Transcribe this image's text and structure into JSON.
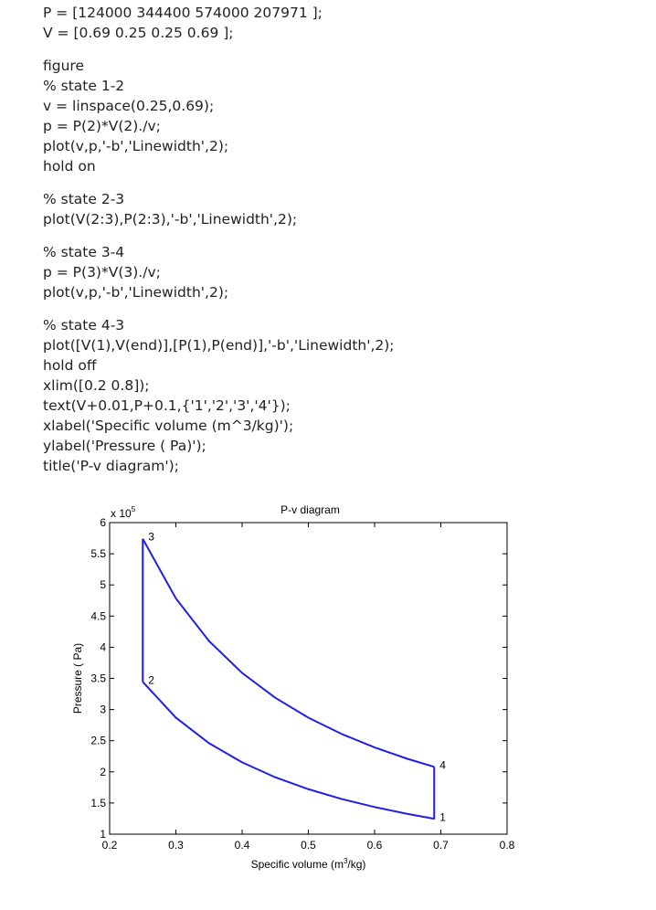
{
  "code": [
    [
      "P = [124000 344400 574000 207971 ];",
      "V = [0.69 0.25 0.25 0.69 ];"
    ],
    [
      "figure",
      "% state 1-2",
      "v = linspace(0.25,0.69);",
      "p = P(2)*V(2)./v;",
      "plot(v,p,'-b','Linewidth',2);",
      "hold on"
    ],
    [
      "% state 2-3",
      "plot(V(2:3),P(2:3),'-b','Linewidth',2);"
    ],
    [
      "% state 3-4",
      "p = P(3)*V(3)./v;",
      "plot(v,p,'-b','Linewidth',2);"
    ],
    [
      "% state 4-3",
      "plot([V(1),V(end)],[P(1),P(end)],'-b','Linewidth',2);",
      "hold off",
      "xlim([0.2 0.8]);",
      "text(V+0.01,P+0.1,{'1','2','3','4'});",
      "xlabel('Specific volume (m^3/kg)');",
      "ylabel('Pressure ( Pa)');",
      "title('P-v diagram');"
    ]
  ],
  "chart_data": {
    "type": "line",
    "title": "P-v diagram",
    "xlabel": {
      "before": "Specific volume (m",
      "sup": "3",
      "after": "/kg)"
    },
    "ylabel": "Pressure ( Pa)",
    "y_multiplier": {
      "base": "x 10",
      "exponent": "5"
    },
    "xlim": [
      0.2,
      0.8
    ],
    "xticks": [
      0.2,
      0.3,
      0.4,
      0.5,
      0.6,
      0.7,
      0.8
    ],
    "ylim": [
      1,
      6
    ],
    "yticks": [
      1,
      1.5,
      2,
      2.5,
      3,
      3.5,
      4,
      4.5,
      5,
      5.5,
      6
    ],
    "series": [
      {
        "color": "#1f1fe6",
        "x": [
          0.25,
          0.3,
          0.35,
          0.4,
          0.45,
          0.5,
          0.55,
          0.6,
          0.65,
          0.69
        ],
        "values": [
          3.444,
          2.87,
          2.46,
          2.1525,
          1.913,
          1.722,
          1.565,
          1.435,
          1.3246,
          1.248
        ]
      },
      {
        "color": "#1f1fe6",
        "x": [
          0.25,
          0.25
        ],
        "values": [
          3.444,
          5.74
        ]
      },
      {
        "color": "#1f1fe6",
        "x": [
          0.25,
          0.3,
          0.35,
          0.4,
          0.45,
          0.5,
          0.55,
          0.6,
          0.65,
          0.69
        ],
        "values": [
          5.74,
          4.783,
          4.1,
          3.5875,
          3.189,
          2.87,
          2.609,
          2.392,
          2.208,
          2.08
        ]
      },
      {
        "color": "#1f1fe6",
        "x": [
          0.69,
          0.69
        ],
        "values": [
          2.07971,
          1.24
        ]
      }
    ],
    "point_labels": [
      "1",
      "2",
      "3",
      "4"
    ],
    "points": {
      "x": [
        0.69,
        0.25,
        0.25,
        0.69
      ],
      "y": [
        1.24,
        3.444,
        5.74,
        2.07971
      ]
    }
  }
}
